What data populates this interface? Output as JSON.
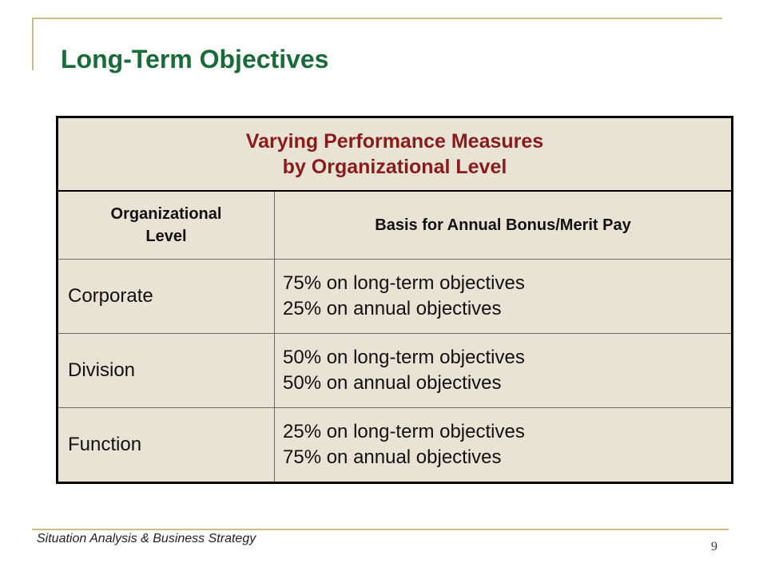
{
  "slide": {
    "title": "Long-Term Objectives"
  },
  "table": {
    "caption_line1": "Varying Performance Measures",
    "caption_line2": "by Organizational Level",
    "header": {
      "col1_line1": "Organizational",
      "col1_line2": "Level",
      "col2": "Basis for Annual Bonus/Merit Pay"
    },
    "rows": [
      {
        "level": "Corporate",
        "line1": "75% on long-term objectives",
        "line2": "25% on annual objectives"
      },
      {
        "level": "Division",
        "line1": "50% on long-term objectives",
        "line2": "50% on annual objectives"
      },
      {
        "level": "Function",
        "line1": "25% on long-term objectives",
        "line2": "75% on annual objectives"
      }
    ]
  },
  "footer": {
    "text": "Situation Analysis & Business Strategy",
    "page_number": "9"
  },
  "colors": {
    "title": "#1a6b3a",
    "caption": "#8b1a1a",
    "table_background": "#e8e3d5",
    "frame_lines": "#c8bd86"
  }
}
